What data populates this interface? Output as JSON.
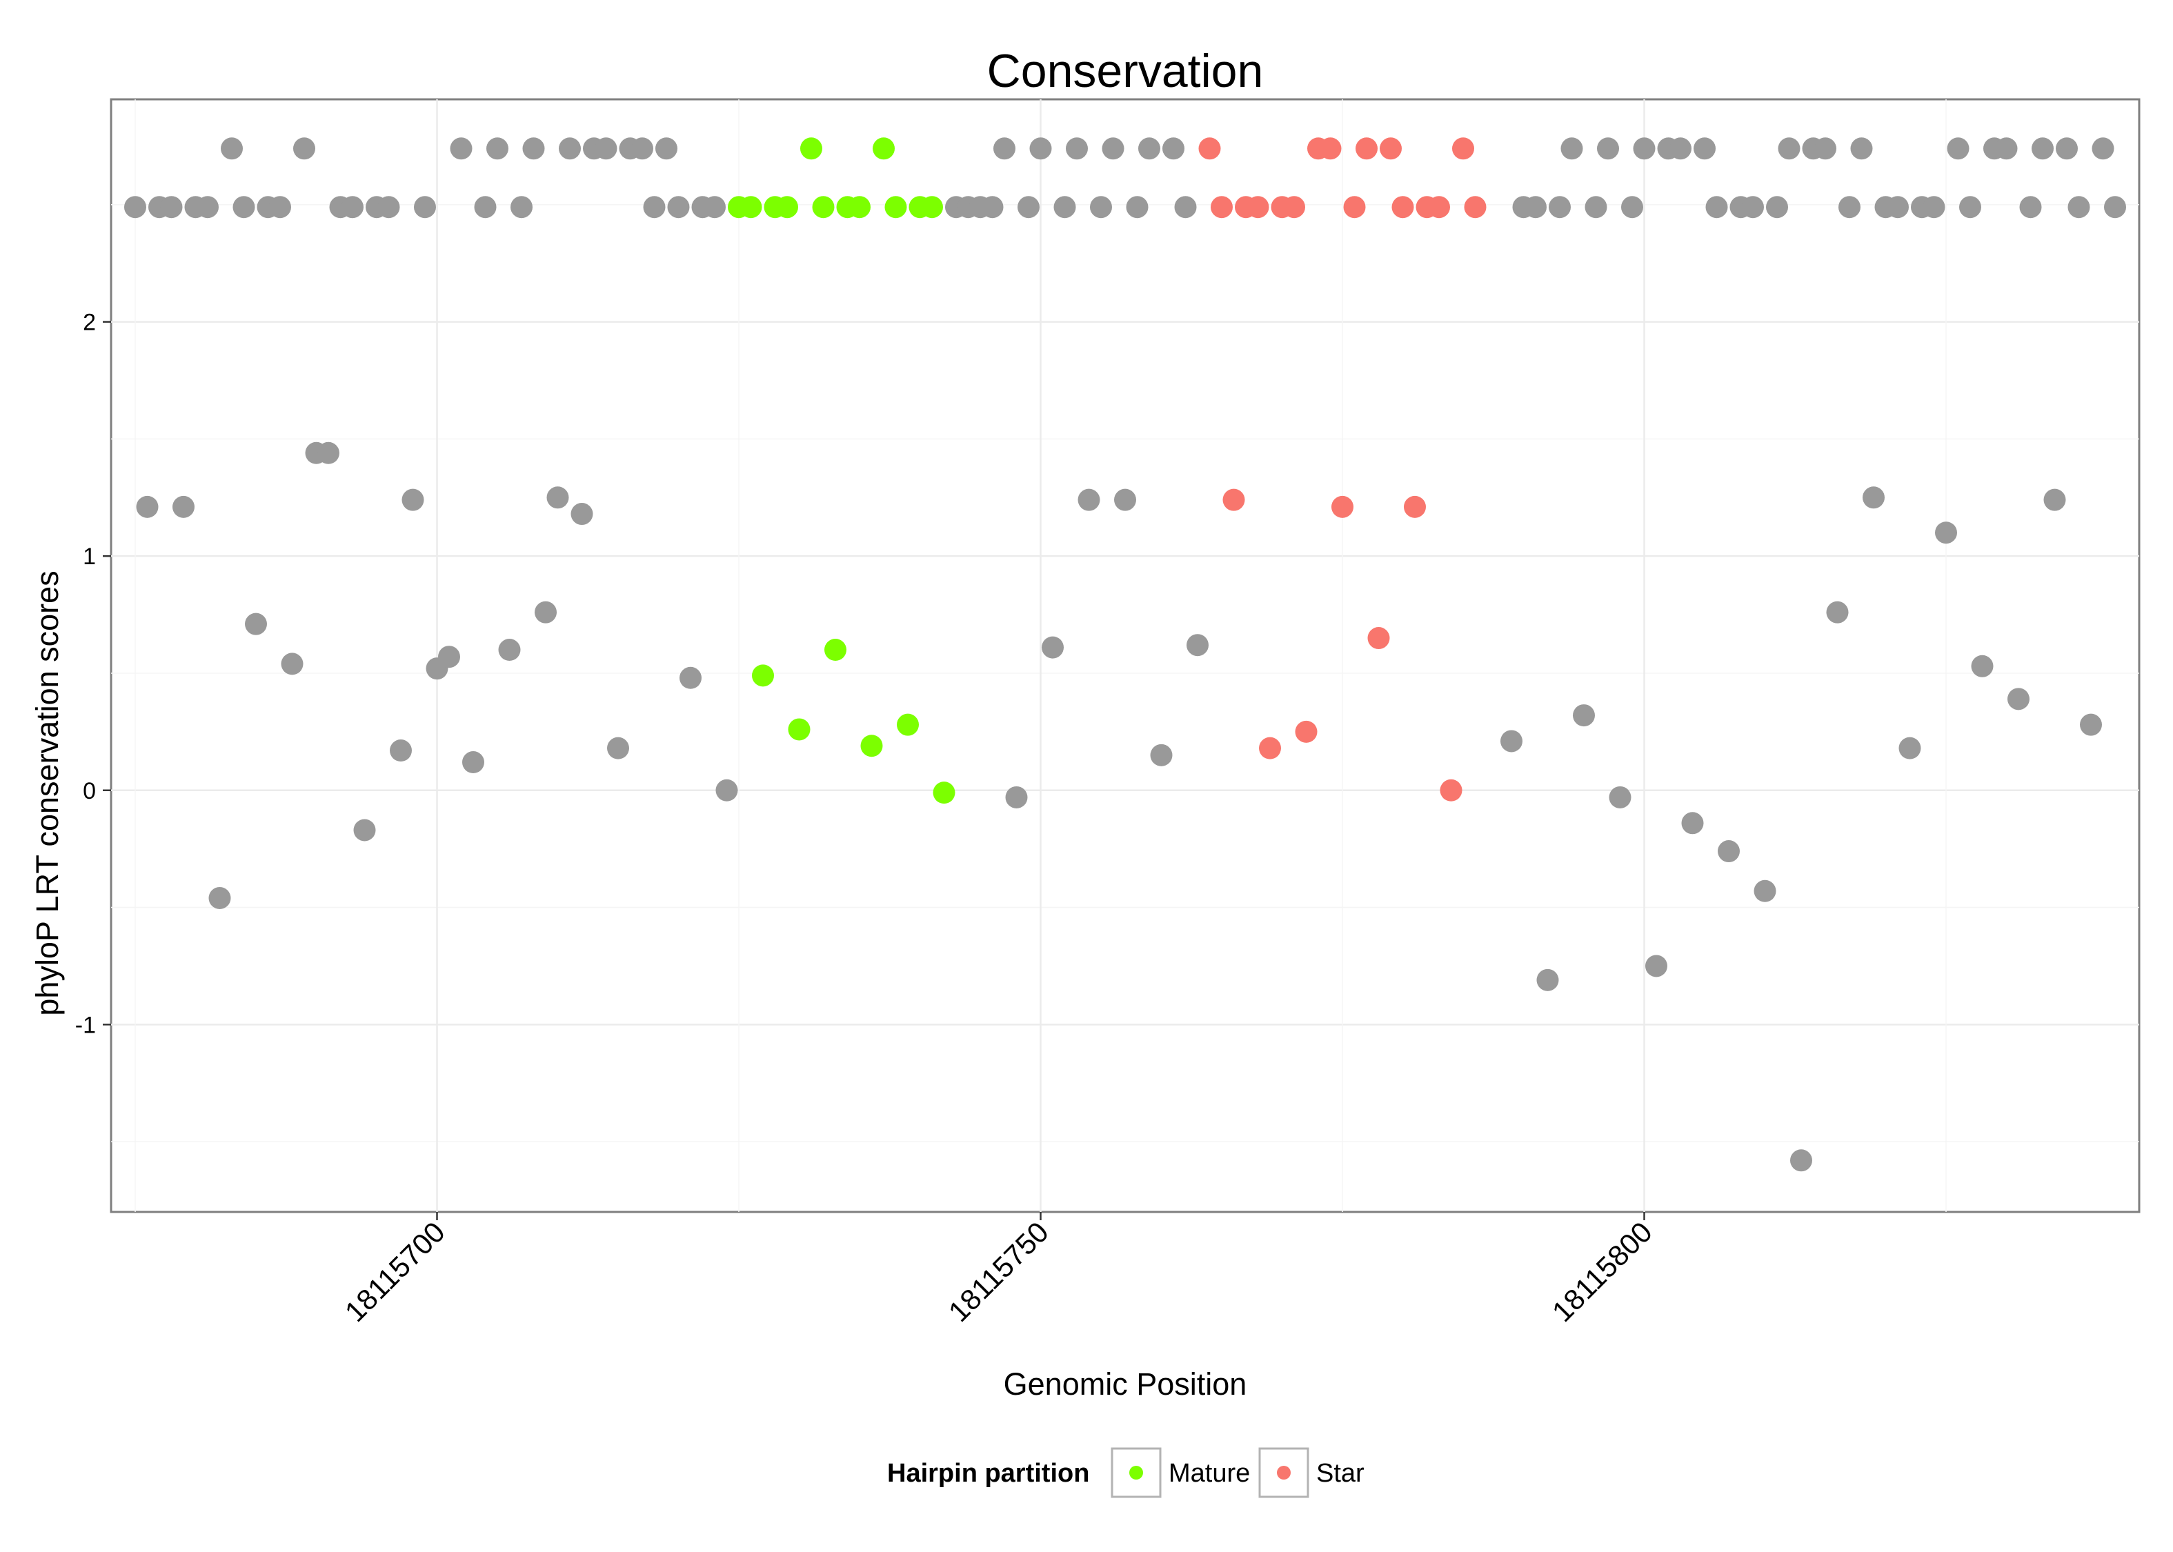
{
  "chart_data": {
    "type": "scatter",
    "title": "Conservation",
    "xlabel": "Genomic Position",
    "ylabel": "phyloP LRT conservation scores",
    "xlim": [
      18115673,
      18115841
    ],
    "ylim": [
      -1.8,
      2.95
    ],
    "x_ticks": [
      18115700,
      18115750,
      18115800
    ],
    "x_tick_labels": [
      "18115700",
      "18115750",
      "18115800"
    ],
    "y_ticks": [
      -1,
      0,
      1,
      2
    ],
    "y_tick_labels": [
      "-1",
      "0",
      "1",
      "2"
    ],
    "grid": true,
    "legend": {
      "title": "Hairpin partition",
      "position": "bottom",
      "entries": [
        {
          "name": "Mature",
          "color": "#7cff00"
        },
        {
          "name": "Star",
          "color": "#f8766d"
        }
      ]
    },
    "colors": {
      "other": "#999999",
      "Mature": "#7cff00",
      "Star": "#f8766d"
    },
    "series": [
      {
        "name": "Other",
        "color": "#999999",
        "points": [
          [
            18115675,
            2.49
          ],
          [
            18115676,
            1.21
          ],
          [
            18115677,
            2.49
          ],
          [
            18115678,
            2.49
          ],
          [
            18115679,
            1.21
          ],
          [
            18115680,
            2.49
          ],
          [
            18115681,
            2.49
          ],
          [
            18115682,
            -0.46
          ],
          [
            18115683,
            2.74
          ],
          [
            18115684,
            2.49
          ],
          [
            18115685,
            0.71
          ],
          [
            18115686,
            2.49
          ],
          [
            18115687,
            2.49
          ],
          [
            18115688,
            0.54
          ],
          [
            18115689,
            2.74
          ],
          [
            18115690,
            1.44
          ],
          [
            18115691,
            1.44
          ],
          [
            18115692,
            2.49
          ],
          [
            18115693,
            2.49
          ],
          [
            18115694,
            -0.17
          ],
          [
            18115695,
            2.49
          ],
          [
            18115696,
            2.49
          ],
          [
            18115697,
            0.17
          ],
          [
            18115698,
            1.24
          ],
          [
            18115699,
            2.49
          ],
          [
            18115700,
            0.52
          ],
          [
            18115701,
            0.57
          ],
          [
            18115702,
            2.74
          ],
          [
            18115703,
            0.12
          ],
          [
            18115704,
            2.49
          ],
          [
            18115705,
            2.74
          ],
          [
            18115706,
            0.6
          ],
          [
            18115707,
            2.49
          ],
          [
            18115708,
            2.74
          ],
          [
            18115709,
            0.76
          ],
          [
            18115710,
            1.25
          ],
          [
            18115711,
            2.74
          ],
          [
            18115712,
            1.18
          ],
          [
            18115713,
            2.74
          ],
          [
            18115714,
            2.74
          ],
          [
            18115715,
            0.18
          ],
          [
            18115716,
            2.74
          ],
          [
            18115717,
            2.74
          ],
          [
            18115718,
            2.49
          ],
          [
            18115719,
            2.74
          ],
          [
            18115720,
            2.49
          ],
          [
            18115721,
            0.48
          ],
          [
            18115722,
            2.49
          ],
          [
            18115723,
            2.49
          ],
          [
            18115724,
            0.0
          ],
          [
            18115743,
            2.49
          ],
          [
            18115744,
            2.49
          ],
          [
            18115745,
            2.49
          ],
          [
            18115746,
            2.49
          ],
          [
            18115747,
            2.74
          ],
          [
            18115748,
            -0.03
          ],
          [
            18115749,
            2.49
          ],
          [
            18115750,
            2.74
          ],
          [
            18115751,
            0.61
          ],
          [
            18115752,
            2.49
          ],
          [
            18115753,
            2.74
          ],
          [
            18115754,
            1.24
          ],
          [
            18115755,
            2.49
          ],
          [
            18115756,
            2.74
          ],
          [
            18115757,
            1.24
          ],
          [
            18115758,
            2.49
          ],
          [
            18115759,
            2.74
          ],
          [
            18115760,
            0.15
          ],
          [
            18115761,
            2.74
          ],
          [
            18115762,
            2.49
          ],
          [
            18115763,
            0.62
          ],
          [
            18115789,
            0.21
          ],
          [
            18115790,
            2.49
          ],
          [
            18115791,
            2.49
          ],
          [
            18115792,
            -0.81
          ],
          [
            18115793,
            2.49
          ],
          [
            18115794,
            2.74
          ],
          [
            18115795,
            0.32
          ],
          [
            18115796,
            2.49
          ],
          [
            18115797,
            2.74
          ],
          [
            18115798,
            -0.03
          ],
          [
            18115799,
            2.49
          ],
          [
            18115800,
            2.74
          ],
          [
            18115801,
            -0.75
          ],
          [
            18115802,
            2.74
          ],
          [
            18115803,
            2.74
          ],
          [
            18115804,
            -0.14
          ],
          [
            18115805,
            2.74
          ],
          [
            18115806,
            2.49
          ],
          [
            18115807,
            -0.26
          ],
          [
            18115808,
            2.49
          ],
          [
            18115809,
            2.49
          ],
          [
            18115810,
            -0.43
          ],
          [
            18115811,
            2.49
          ],
          [
            18115812,
            2.74
          ],
          [
            18115813,
            -1.58
          ],
          [
            18115814,
            2.74
          ],
          [
            18115815,
            2.74
          ],
          [
            18115816,
            0.76
          ],
          [
            18115817,
            2.49
          ],
          [
            18115818,
            2.74
          ],
          [
            18115819,
            1.25
          ],
          [
            18115820,
            2.49
          ],
          [
            18115821,
            2.49
          ],
          [
            18115822,
            0.18
          ],
          [
            18115823,
            2.49
          ],
          [
            18115824,
            2.49
          ],
          [
            18115825,
            1.1
          ],
          [
            18115826,
            2.74
          ],
          [
            18115827,
            2.49
          ],
          [
            18115828,
            0.53
          ],
          [
            18115829,
            2.74
          ],
          [
            18115830,
            2.74
          ],
          [
            18115831,
            0.39
          ],
          [
            18115832,
            2.49
          ],
          [
            18115833,
            2.74
          ],
          [
            18115834,
            1.24
          ],
          [
            18115835,
            2.74
          ],
          [
            18115836,
            2.49
          ],
          [
            18115837,
            0.28
          ],
          [
            18115838,
            2.74
          ],
          [
            18115839,
            2.49
          ]
        ]
      },
      {
        "name": "Mature",
        "color": "#7cff00",
        "points": [
          [
            18115725,
            2.49
          ],
          [
            18115726,
            2.49
          ],
          [
            18115727,
            0.49
          ],
          [
            18115728,
            2.49
          ],
          [
            18115729,
            2.49
          ],
          [
            18115730,
            0.26
          ],
          [
            18115731,
            2.74
          ],
          [
            18115732,
            2.49
          ],
          [
            18115733,
            0.6
          ],
          [
            18115734,
            2.49
          ],
          [
            18115735,
            2.49
          ],
          [
            18115736,
            0.19
          ],
          [
            18115737,
            2.74
          ],
          [
            18115738,
            2.49
          ],
          [
            18115739,
            0.28
          ],
          [
            18115740,
            2.49
          ],
          [
            18115741,
            2.49
          ],
          [
            18115742,
            -0.01
          ]
        ]
      },
      {
        "name": "Star",
        "color": "#f8766d",
        "points": [
          [
            18115764,
            2.74
          ],
          [
            18115765,
            2.49
          ],
          [
            18115766,
            1.24
          ],
          [
            18115767,
            2.49
          ],
          [
            18115768,
            2.49
          ],
          [
            18115769,
            0.18
          ],
          [
            18115770,
            2.49
          ],
          [
            18115771,
            2.49
          ],
          [
            18115772,
            0.25
          ],
          [
            18115773,
            2.74
          ],
          [
            18115774,
            2.74
          ],
          [
            18115775,
            1.21
          ],
          [
            18115776,
            2.49
          ],
          [
            18115777,
            2.74
          ],
          [
            18115778,
            0.65
          ],
          [
            18115779,
            2.74
          ],
          [
            18115780,
            2.49
          ],
          [
            18115781,
            1.21
          ],
          [
            18115782,
            2.49
          ],
          [
            18115783,
            2.49
          ],
          [
            18115784,
            0.0
          ],
          [
            18115785,
            2.74
          ],
          [
            18115786,
            2.49
          ]
        ]
      }
    ]
  }
}
